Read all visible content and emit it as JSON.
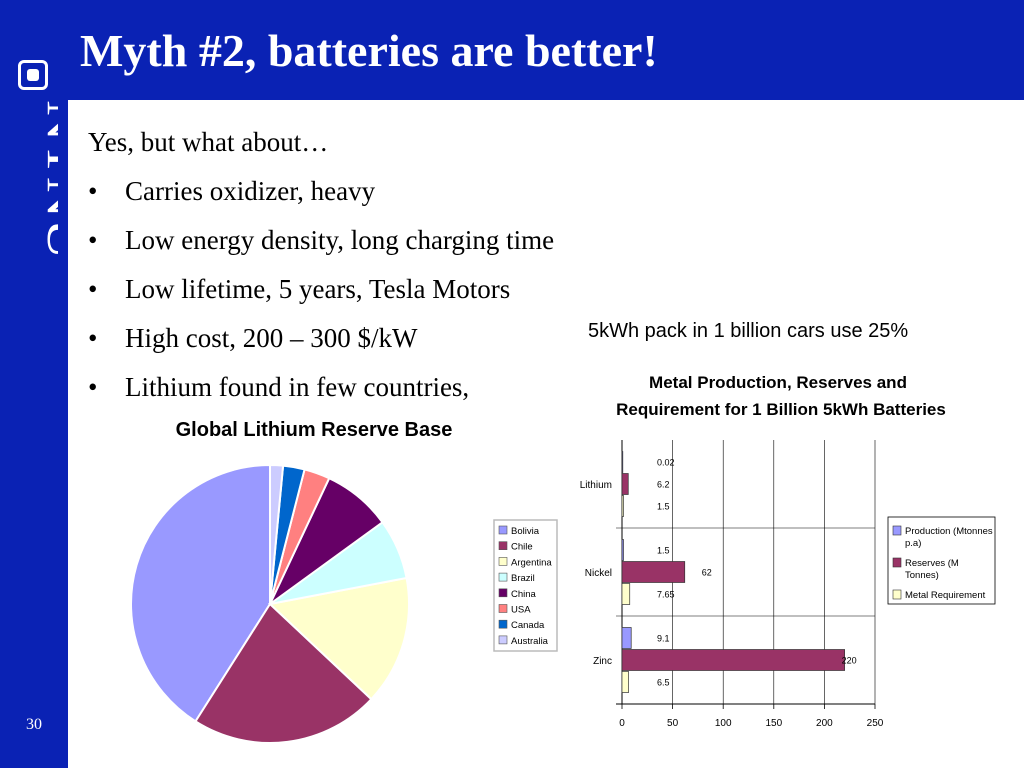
{
  "slide": {
    "title": "Myth #2, batteries are better!",
    "page_number": "30",
    "intro": "Yes, but what about…",
    "bullet_symbol": "•",
    "bullets": [
      "Carries oxidizer, heavy",
      "Low energy density, long charging time",
      "Low lifetime, 5 years, Tesla Motors",
      "High cost, 200 – 300 $/kW",
      "Lithium found in few countries,"
    ],
    "annotation": "5kWh pack in 1 billion cars use 25%",
    "logo_text": "NTNU",
    "colors": {
      "brand_blue": "#0a22b4"
    }
  },
  "chart_data": [
    {
      "type": "pie",
      "title": "Global Lithium Reserve Base",
      "legend_position": "right",
      "slices": [
        {
          "label": "Bolivia",
          "value": 41,
          "color": "#9999ff"
        },
        {
          "label": "Chile",
          "value": 22,
          "color": "#993366"
        },
        {
          "label": "Argentina",
          "value": 15,
          "color": "#ffffcc"
        },
        {
          "label": "Brazil",
          "value": 7,
          "color": "#ccffff"
        },
        {
          "label": "China",
          "value": 8,
          "color": "#660066"
        },
        {
          "label": "USA",
          "value": 3,
          "color": "#ff8080"
        },
        {
          "label": "Canada",
          "value": 2.5,
          "color": "#0066cc"
        },
        {
          "label": "Australia",
          "value": 1.5,
          "color": "#ccccff"
        }
      ]
    },
    {
      "type": "bar",
      "orientation": "horizontal",
      "title": "Metal Production, Reserves and Requirement for 1 Billion 5kWh Batteries",
      "categories": [
        "Lithium",
        "Nickel",
        "Zinc"
      ],
      "series": [
        {
          "name": "Production (Mtonnes p.a)",
          "values": [
            0.02,
            1.5,
            9.1
          ],
          "color": "#9999ff"
        },
        {
          "name": "Reserves (M Tonnes)",
          "values": [
            6.2,
            62,
            220
          ],
          "color": "#993366"
        },
        {
          "name": "Metal Requirement",
          "values": [
            1.5,
            7.65,
            6.5
          ],
          "color": "#ffffcc"
        }
      ],
      "value_labels": [
        [
          "0.02",
          "6.2",
          "1.5"
        ],
        [
          "1.5",
          "62",
          "7.65"
        ],
        [
          "9.1",
          "220",
          "6.5"
        ]
      ],
      "xticks": [
        "0",
        "50",
        "100",
        "150",
        "200",
        "250"
      ],
      "xlim": [
        0,
        250
      ],
      "grid": true,
      "legend_position": "right"
    }
  ]
}
